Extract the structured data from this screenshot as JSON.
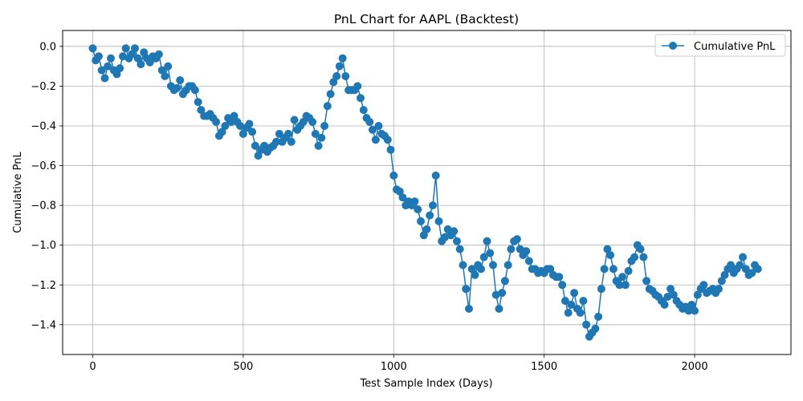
{
  "chart_data": {
    "type": "line",
    "title": "PnL Chart for AAPL (Backtest)",
    "xlabel": "Test Sample Index (Days)",
    "ylabel": "Cumulative PnL",
    "xlim": [
      -100,
      2320
    ],
    "ylim": [
      -1.55,
      0.08
    ],
    "xticks": [
      0,
      500,
      1000,
      1500,
      2000
    ],
    "xtick_labels": [
      "0",
      "500",
      "1000",
      "1500",
      "2000"
    ],
    "yticks": [
      0.0,
      -0.2,
      -0.4,
      -0.6,
      -0.8,
      -1.0,
      -1.2,
      -1.4
    ],
    "ytick_labels": [
      "0.0",
      "−0.2",
      "−0.4",
      "−0.6",
      "−0.8",
      "−1.0",
      "−1.2",
      "−1.4"
    ],
    "grid": true,
    "legend_position": "top-right",
    "marker": "circle",
    "series": [
      {
        "name": "Cumulative PnL",
        "color": "#1f77b4",
        "points": [
          [
            0,
            -0.01
          ],
          [
            10,
            -0.07
          ],
          [
            20,
            -0.05
          ],
          [
            30,
            -0.12
          ],
          [
            40,
            -0.16
          ],
          [
            50,
            -0.1
          ],
          [
            60,
            -0.06
          ],
          [
            70,
            -0.12
          ],
          [
            80,
            -0.14
          ],
          [
            90,
            -0.11
          ],
          [
            100,
            -0.05
          ],
          [
            110,
            -0.01
          ],
          [
            120,
            -0.06
          ],
          [
            130,
            -0.04
          ],
          [
            140,
            -0.01
          ],
          [
            150,
            -0.06
          ],
          [
            160,
            -0.09
          ],
          [
            170,
            -0.03
          ],
          [
            180,
            -0.06
          ],
          [
            190,
            -0.08
          ],
          [
            200,
            -0.05
          ],
          [
            210,
            -0.06
          ],
          [
            220,
            -0.04
          ],
          [
            230,
            -0.12
          ],
          [
            240,
            -0.15
          ],
          [
            250,
            -0.1
          ],
          [
            260,
            -0.2
          ],
          [
            270,
            -0.22
          ],
          [
            280,
            -0.21
          ],
          [
            290,
            -0.17
          ],
          [
            300,
            -0.24
          ],
          [
            310,
            -0.22
          ],
          [
            320,
            -0.2
          ],
          [
            330,
            -0.2
          ],
          [
            340,
            -0.22
          ],
          [
            350,
            -0.28
          ],
          [
            360,
            -0.32
          ],
          [
            370,
            -0.35
          ],
          [
            380,
            -0.35
          ],
          [
            390,
            -0.34
          ],
          [
            400,
            -0.36
          ],
          [
            410,
            -0.38
          ],
          [
            420,
            -0.45
          ],
          [
            430,
            -0.43
          ],
          [
            440,
            -0.4
          ],
          [
            450,
            -0.36
          ],
          [
            460,
            -0.38
          ],
          [
            470,
            -0.35
          ],
          [
            480,
            -0.38
          ],
          [
            490,
            -0.4
          ],
          [
            500,
            -0.44
          ],
          [
            510,
            -0.41
          ],
          [
            520,
            -0.39
          ],
          [
            530,
            -0.43
          ],
          [
            540,
            -0.5
          ],
          [
            550,
            -0.55
          ],
          [
            560,
            -0.52
          ],
          [
            570,
            -0.5
          ],
          [
            580,
            -0.53
          ],
          [
            590,
            -0.51
          ],
          [
            600,
            -0.5
          ],
          [
            610,
            -0.48
          ],
          [
            620,
            -0.44
          ],
          [
            630,
            -0.48
          ],
          [
            640,
            -0.46
          ],
          [
            650,
            -0.44
          ],
          [
            660,
            -0.48
          ],
          [
            670,
            -0.37
          ],
          [
            680,
            -0.42
          ],
          [
            690,
            -0.4
          ],
          [
            700,
            -0.38
          ],
          [
            710,
            -0.35
          ],
          [
            720,
            -0.36
          ],
          [
            730,
            -0.38
          ],
          [
            740,
            -0.44
          ],
          [
            750,
            -0.5
          ],
          [
            760,
            -0.46
          ],
          [
            770,
            -0.4
          ],
          [
            780,
            -0.3
          ],
          [
            790,
            -0.24
          ],
          [
            800,
            -0.18
          ],
          [
            810,
            -0.15
          ],
          [
            820,
            -0.1
          ],
          [
            830,
            -0.06
          ],
          [
            840,
            -0.15
          ],
          [
            850,
            -0.22
          ],
          [
            860,
            -0.22
          ],
          [
            870,
            -0.22
          ],
          [
            880,
            -0.2
          ],
          [
            890,
            -0.26
          ],
          [
            900,
            -0.32
          ],
          [
            910,
            -0.36
          ],
          [
            920,
            -0.38
          ],
          [
            930,
            -0.42
          ],
          [
            940,
            -0.47
          ],
          [
            950,
            -0.4
          ],
          [
            960,
            -0.44
          ],
          [
            970,
            -0.45
          ],
          [
            980,
            -0.47
          ],
          [
            990,
            -0.52
          ],
          [
            1000,
            -0.65
          ],
          [
            1010,
            -0.72
          ],
          [
            1020,
            -0.73
          ],
          [
            1030,
            -0.76
          ],
          [
            1040,
            -0.8
          ],
          [
            1050,
            -0.78
          ],
          [
            1060,
            -0.8
          ],
          [
            1070,
            -0.78
          ],
          [
            1080,
            -0.82
          ],
          [
            1090,
            -0.88
          ],
          [
            1100,
            -0.95
          ],
          [
            1110,
            -0.92
          ],
          [
            1120,
            -0.85
          ],
          [
            1130,
            -0.8
          ],
          [
            1140,
            -0.65
          ],
          [
            1150,
            -0.88
          ],
          [
            1160,
            -0.98
          ],
          [
            1170,
            -0.96
          ],
          [
            1180,
            -0.92
          ],
          [
            1190,
            -0.95
          ],
          [
            1200,
            -0.93
          ],
          [
            1210,
            -0.98
          ],
          [
            1220,
            -1.02
          ],
          [
            1230,
            -1.1
          ],
          [
            1240,
            -1.22
          ],
          [
            1250,
            -1.32
          ],
          [
            1260,
            -1.12
          ],
          [
            1270,
            -1.15
          ],
          [
            1280,
            -1.1
          ],
          [
            1290,
            -1.12
          ],
          [
            1300,
            -1.06
          ],
          [
            1310,
            -0.98
          ],
          [
            1320,
            -1.04
          ],
          [
            1330,
            -1.1
          ],
          [
            1340,
            -1.25
          ],
          [
            1350,
            -1.32
          ],
          [
            1360,
            -1.24
          ],
          [
            1370,
            -1.18
          ],
          [
            1380,
            -1.1
          ],
          [
            1390,
            -1.02
          ],
          [
            1400,
            -0.98
          ],
          [
            1410,
            -0.97
          ],
          [
            1420,
            -1.02
          ],
          [
            1430,
            -1.05
          ],
          [
            1440,
            -1.03
          ],
          [
            1450,
            -1.08
          ],
          [
            1460,
            -1.12
          ],
          [
            1470,
            -1.12
          ],
          [
            1480,
            -1.14
          ],
          [
            1490,
            -1.13
          ],
          [
            1500,
            -1.14
          ],
          [
            1510,
            -1.12
          ],
          [
            1520,
            -1.12
          ],
          [
            1530,
            -1.15
          ],
          [
            1540,
            -1.16
          ],
          [
            1550,
            -1.16
          ],
          [
            1560,
            -1.2
          ],
          [
            1570,
            -1.28
          ],
          [
            1580,
            -1.34
          ],
          [
            1590,
            -1.3
          ],
          [
            1600,
            -1.24
          ],
          [
            1610,
            -1.32
          ],
          [
            1620,
            -1.34
          ],
          [
            1630,
            -1.28
          ],
          [
            1640,
            -1.4
          ],
          [
            1650,
            -1.46
          ],
          [
            1660,
            -1.44
          ],
          [
            1670,
            -1.42
          ],
          [
            1680,
            -1.36
          ],
          [
            1690,
            -1.22
          ],
          [
            1700,
            -1.12
          ],
          [
            1710,
            -1.02
          ],
          [
            1720,
            -1.05
          ],
          [
            1730,
            -1.12
          ],
          [
            1740,
            -1.18
          ],
          [
            1750,
            -1.2
          ],
          [
            1760,
            -1.16
          ],
          [
            1770,
            -1.2
          ],
          [
            1780,
            -1.13
          ],
          [
            1790,
            -1.08
          ],
          [
            1800,
            -1.06
          ],
          [
            1810,
            -1.0
          ],
          [
            1820,
            -1.02
          ],
          [
            1830,
            -1.06
          ],
          [
            1840,
            -1.18
          ],
          [
            1850,
            -1.22
          ],
          [
            1860,
            -1.23
          ],
          [
            1870,
            -1.25
          ],
          [
            1880,
            -1.26
          ],
          [
            1890,
            -1.28
          ],
          [
            1900,
            -1.3
          ],
          [
            1910,
            -1.26
          ],
          [
            1920,
            -1.22
          ],
          [
            1930,
            -1.25
          ],
          [
            1940,
            -1.28
          ],
          [
            1950,
            -1.3
          ],
          [
            1960,
            -1.32
          ],
          [
            1970,
            -1.31
          ],
          [
            1980,
            -1.33
          ],
          [
            1990,
            -1.3
          ],
          [
            2000,
            -1.33
          ],
          [
            2010,
            -1.25
          ],
          [
            2020,
            -1.22
          ],
          [
            2030,
            -1.2
          ],
          [
            2040,
            -1.24
          ],
          [
            2050,
            -1.23
          ],
          [
            2060,
            -1.22
          ],
          [
            2070,
            -1.24
          ],
          [
            2080,
            -1.22
          ],
          [
            2090,
            -1.18
          ],
          [
            2100,
            -1.15
          ],
          [
            2110,
            -1.12
          ],
          [
            2120,
            -1.1
          ],
          [
            2130,
            -1.14
          ],
          [
            2140,
            -1.12
          ],
          [
            2150,
            -1.1
          ],
          [
            2160,
            -1.06
          ],
          [
            2170,
            -1.12
          ],
          [
            2180,
            -1.15
          ],
          [
            2190,
            -1.14
          ],
          [
            2200,
            -1.1
          ],
          [
            2210,
            -1.12
          ]
        ]
      }
    ]
  }
}
